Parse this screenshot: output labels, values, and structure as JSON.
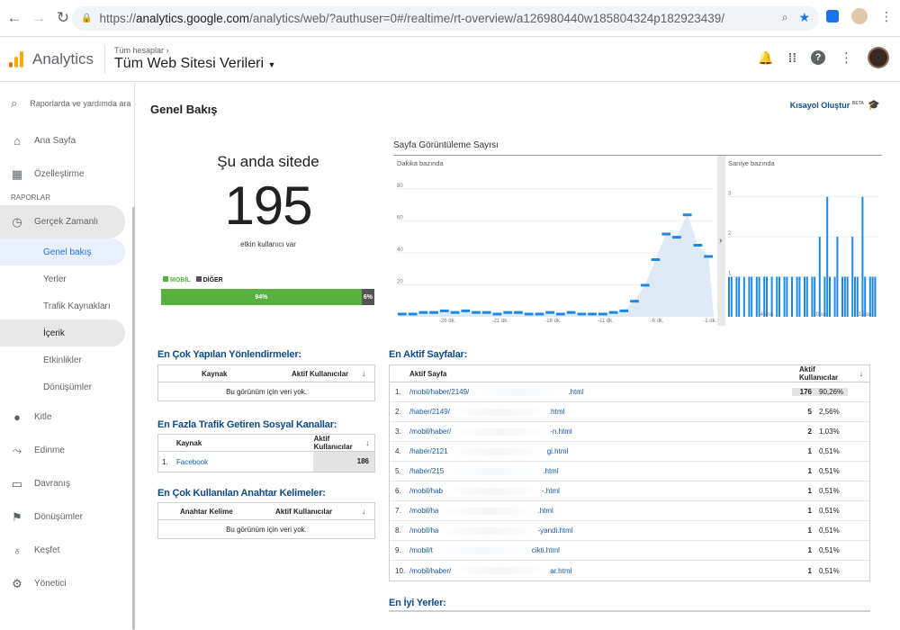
{
  "browser": {
    "url_scheme": "https://",
    "url_host": "analytics.google.com",
    "url_path": "/analytics/web/?authuser=0#/realtime/rt-overview/a126980440w185804324p182923439/"
  },
  "header": {
    "app_title": "Analytics",
    "breadcrumb": "Tüm hesaplar",
    "property": "Tüm Web Sitesi Verileri"
  },
  "sidebar": {
    "search_placeholder": "Raporlarda ve yardımda ara",
    "home": "Ana Sayfa",
    "customize": "Özelleştirme",
    "section": "RAPORLAR",
    "realtime": "Gerçek Zamanlı",
    "sub": [
      "Genel bakış",
      "Yerler",
      "Trafik Kaynakları",
      "İçerik",
      "Etkinlikler",
      "Dönüşümler"
    ],
    "audience": "Kitle",
    "acquisition": "Edinme",
    "behavior": "Davranış",
    "conversions": "Dönüşümler",
    "discover": "Keşfet",
    "admin": "Yönetici"
  },
  "main": {
    "title": "Genel Bakış",
    "shortcut": "Kısayol Oluştur",
    "shortcut_badge": "BETA",
    "now_label": "Şu anda sitede",
    "now_count": "195",
    "now_sub": "etkin kullanıcı var",
    "legend_mobile": "MOBİL",
    "legend_other": "DİĞER",
    "mobile_pct": "94%",
    "other_pct": "6%",
    "mobile_fraction": 0.94,
    "colors": {
      "mobile": "#58b13f",
      "other": "#555555",
      "bars": "#1e88e5"
    }
  },
  "chart_data": [
    {
      "type": "line",
      "title": "Sayfa Görüntüleme Sayısı",
      "subtitle": "Dakika bazında",
      "y_ticks": [
        20,
        40,
        60,
        80
      ],
      "ylim": [
        0,
        90
      ],
      "x_ticks": [
        "-26 dk.",
        "-21 dk.",
        "-16 dk.",
        "-11 dk.",
        "-6 dk.",
        "-1 dk."
      ],
      "x": [
        -30,
        -29,
        -28,
        -27,
        -26,
        -25,
        -24,
        -23,
        -22,
        -21,
        -20,
        -19,
        -18,
        -17,
        -16,
        -15,
        -14,
        -13,
        -12,
        -11,
        -10,
        -9,
        -8,
        -7,
        -6,
        -5,
        -4,
        -3,
        -2,
        -1
      ],
      "values": [
        2,
        2,
        3,
        3,
        4,
        3,
        4,
        3,
        3,
        2,
        3,
        3,
        2,
        2,
        3,
        2,
        3,
        2,
        2,
        2,
        3,
        4,
        10,
        20,
        36,
        52,
        50,
        64,
        45,
        38
      ]
    },
    {
      "type": "bar",
      "subtitle": "Saniye bazında",
      "y_ticks": [
        1,
        2,
        3
      ],
      "ylim": [
        0,
        3.6
      ],
      "x_ticks": [
        "-45 sn.",
        "-30 sn.",
        "-15 sn."
      ],
      "values": [
        1,
        1,
        0,
        1,
        1,
        0,
        1,
        0,
        1,
        1,
        0,
        1,
        1,
        0,
        1,
        1,
        0,
        1,
        0,
        1,
        1,
        0,
        1,
        1,
        0,
        1,
        0,
        1,
        1,
        0,
        1,
        1,
        0,
        1,
        1,
        0,
        2,
        0,
        1,
        3,
        1,
        0,
        1,
        2,
        0,
        1,
        1,
        1,
        0,
        2,
        1,
        1,
        0,
        3,
        1,
        0,
        1,
        1,
        1,
        0
      ]
    }
  ],
  "referrals": {
    "title": "En Çok Yapılan Yönlendirmeler:",
    "col_source": "Kaynak",
    "col_users": "Aktif Kullanıcılar",
    "empty": "Bu görünüm için veri yok."
  },
  "social": {
    "title": "En Fazla Trafik Getiren Sosyal Kanallar:",
    "col_source": "Kaynak",
    "col_users": "Aktif Kullanıcılar",
    "rows": [
      {
        "idx": "1.",
        "name": "Facebook",
        "value": "186"
      }
    ]
  },
  "keywords": {
    "title": "En Çok Kullanılan Anahtar Kelimeler:",
    "col_keyword": "Anahtar Kelime",
    "col_users": "Aktif Kullanıcılar",
    "empty": "Bu görünüm için veri yok."
  },
  "active_pages": {
    "title": "En Aktif Sayfalar:",
    "col_page": "Aktif Sayfa",
    "col_users": "Aktif Kullanıcılar",
    "rows": [
      {
        "idx": "1.",
        "pre": "/mobil/haber/2149/",
        "post": ".html",
        "count": "176",
        "pct": "90,26%"
      },
      {
        "idx": "2.",
        "pre": "/haber/2149/",
        "post": ".html",
        "count": "5",
        "pct": "2,56%"
      },
      {
        "idx": "3.",
        "pre": "/mobil/haber/",
        "post": "-n.html",
        "count": "2",
        "pct": "1,03%"
      },
      {
        "idx": "4.",
        "pre": "/haber/2121",
        "post": "gi.html",
        "count": "1",
        "pct": "0,51%"
      },
      {
        "idx": "5.",
        "pre": "/haber/215",
        "post": ".html",
        "count": "1",
        "pct": "0,51%"
      },
      {
        "idx": "6.",
        "pre": "/mobil/hab",
        "post": "-.html",
        "count": "1",
        "pct": "0,51%"
      },
      {
        "idx": "7.",
        "pre": "/mobil/ha",
        "post": ".html",
        "count": "1",
        "pct": "0,51%"
      },
      {
        "idx": "8.",
        "pre": "/mobil/ha",
        "post": "-yandi.html",
        "count": "1",
        "pct": "0,51%"
      },
      {
        "idx": "9.",
        "pre": "/mobil/t",
        "post": "cikti.html",
        "count": "1",
        "pct": "0,51%"
      },
      {
        "idx": "10.",
        "pre": "/mobil/haber/",
        "post": "ar.html",
        "count": "1",
        "pct": "0,51%"
      }
    ]
  },
  "locations": {
    "title": "En İyi Yerler:"
  }
}
